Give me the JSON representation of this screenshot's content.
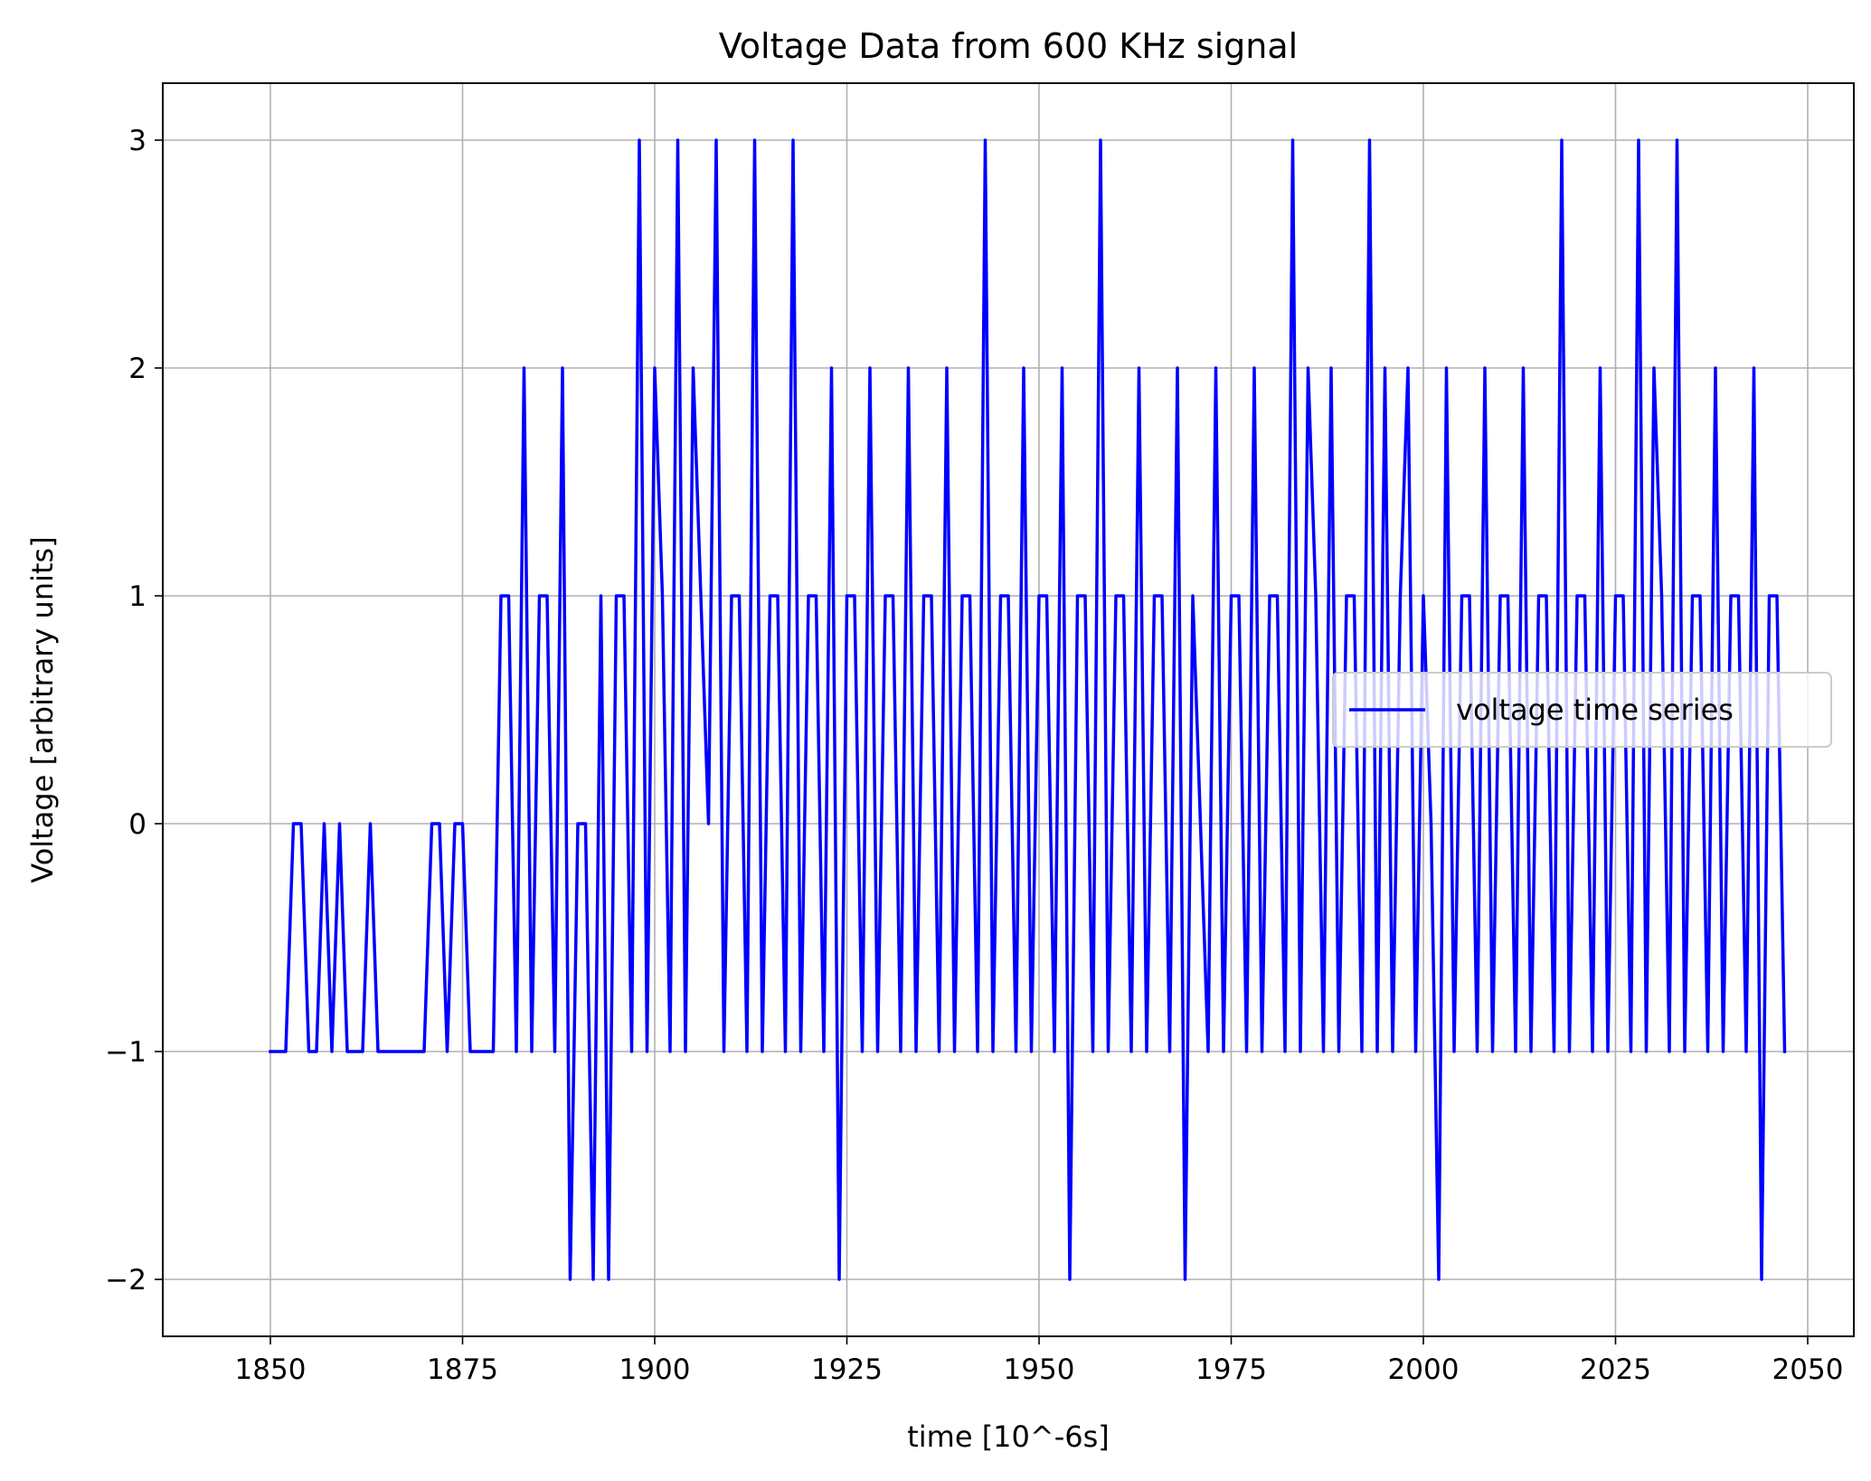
{
  "chart_data": {
    "type": "line",
    "title": "Voltage Data from 600 KHz signal",
    "xlabel": "time [10^-6s]",
    "ylabel": "Voltage [arbitrary units]",
    "xlim": [
      1836,
      2056
    ],
    "ylim": [
      -2.25,
      3.25
    ],
    "xticks": [
      1850,
      1875,
      1900,
      1925,
      1950,
      1975,
      2000,
      2025,
      2050
    ],
    "xtick_labels": [
      "1850",
      "1875",
      "1900",
      "1925",
      "1950",
      "1975",
      "2000",
      "2025",
      "2050"
    ],
    "yticks": [
      -2,
      -1,
      0,
      1,
      2,
      3
    ],
    "ytick_labels": [
      "−2",
      "−1",
      "0",
      "1",
      "2",
      "3"
    ],
    "grid": true,
    "legend": {
      "position": "center-right",
      "entries": [
        "voltage time series"
      ]
    },
    "series": [
      {
        "name": "voltage time series",
        "color": "#0000ff",
        "x_start": 1850,
        "x_step": 1,
        "values": [
          -1,
          -1,
          -1,
          0,
          0,
          -1,
          -1,
          0,
          -1,
          0,
          -1,
          -1,
          -1,
          0,
          -1,
          -1,
          -1,
          -1,
          -1,
          -1,
          -1,
          0,
          0,
          -1,
          0,
          0,
          -1,
          -1,
          -1,
          -1,
          1,
          1,
          -1,
          2,
          -1,
          1,
          1,
          -1,
          2,
          -2,
          0,
          0,
          -2,
          1,
          -2,
          1,
          1,
          -1,
          3,
          -1,
          2,
          1,
          -1,
          3,
          -1,
          2,
          1,
          0,
          3,
          -1,
          1,
          1,
          -1,
          3,
          -1,
          1,
          1,
          -1,
          3,
          -1,
          1,
          1,
          -1,
          2,
          -2,
          1,
          1,
          -1,
          2,
          -1,
          1,
          1,
          -1,
          2,
          -1,
          1,
          1,
          -1,
          2,
          -1,
          1,
          1,
          -1,
          3,
          -1,
          1,
          1,
          -1,
          2,
          -1,
          1,
          1,
          -1,
          2,
          -2,
          1,
          1,
          -1,
          3,
          -1,
          1,
          1,
          -1,
          2,
          -1,
          1,
          1,
          -1,
          2,
          -2,
          1,
          0,
          -1,
          2,
          -1,
          1,
          1,
          -1,
          2,
          -1,
          1,
          1,
          -1,
          3,
          -1,
          2,
          1,
          -1,
          2,
          -1,
          1,
          1,
          -1,
          3,
          -1,
          2,
          -1,
          1,
          2,
          -1,
          1,
          0,
          -2,
          2,
          -1,
          1,
          1,
          -1,
          2,
          -1,
          1,
          1,
          -1,
          2,
          -1,
          1,
          1,
          -1,
          3,
          -1,
          1,
          1,
          -1,
          2,
          -1,
          1,
          1,
          -1,
          3,
          -1,
          2,
          1,
          -1,
          3,
          -1,
          1,
          1,
          -1,
          2,
          -1,
          1,
          1,
          -1,
          2,
          -2,
          1,
          1,
          -1
        ]
      }
    ]
  }
}
